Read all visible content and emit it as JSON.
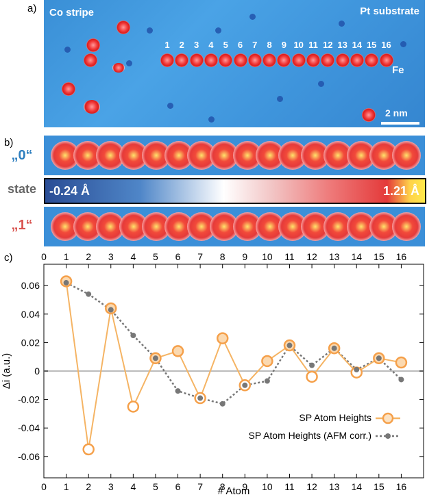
{
  "panel_a": {
    "label": "a)",
    "co_stripe": "Co stripe",
    "pt_substrate": "Pt substrate",
    "fe_label": "Fe",
    "scale_bar": "2 nm",
    "atom_numbers": [
      "1",
      "2",
      "3",
      "4",
      "5",
      "6",
      "7",
      "8",
      "9",
      "10",
      "11",
      "12",
      "13",
      "14",
      "15",
      "16"
    ]
  },
  "panel_b": {
    "label": "b)",
    "state_0": "„0“",
    "state_1": "„1“",
    "state_word": "state",
    "colorbar_min": "-0.24 Å",
    "colorbar_max": "1.21 Å",
    "colors": {
      "state0": "#2e7fbf",
      "state1": "#d9534f"
    }
  },
  "panel_c": {
    "label": "c)"
  },
  "chart_data": {
    "type": "line",
    "xlabel": "# Atom",
    "ylabel": "Δi (a.u.)",
    "xlim": [
      0,
      17
    ],
    "ylim": [
      -0.075,
      0.075
    ],
    "x_ticks": [
      0,
      1,
      2,
      3,
      4,
      5,
      6,
      7,
      8,
      9,
      10,
      11,
      12,
      13,
      14,
      15,
      16
    ],
    "y_ticks": [
      -0.06,
      -0.04,
      -0.02,
      0,
      0.02,
      0.04,
      0.06
    ],
    "y_tick_labels": [
      "-0.06",
      "-0.04",
      "-0.02",
      "0",
      "0.02",
      "0.04",
      "0.06"
    ],
    "x": [
      1,
      2,
      3,
      4,
      5,
      6,
      7,
      8,
      9,
      10,
      11,
      12,
      13,
      14,
      15,
      16
    ],
    "series": [
      {
        "name": "SP Atom Heights",
        "color": "#f5b464",
        "values": [
          0.063,
          -0.055,
          0.044,
          -0.025,
          0.009,
          0.014,
          -0.019,
          0.023,
          -0.01,
          0.007,
          0.018,
          -0.004,
          0.016,
          -0.001,
          0.009,
          0.006
        ]
      },
      {
        "name": "SP Atom Heights (AFM corr.)",
        "color": "#777777",
        "values": [
          0.062,
          0.054,
          0.043,
          0.025,
          0.009,
          -0.014,
          -0.019,
          -0.023,
          -0.01,
          -0.007,
          0.018,
          0.004,
          0.016,
          0.001,
          0.009,
          -0.006
        ]
      }
    ],
    "legend_position": "bottom-right",
    "grid": false
  }
}
